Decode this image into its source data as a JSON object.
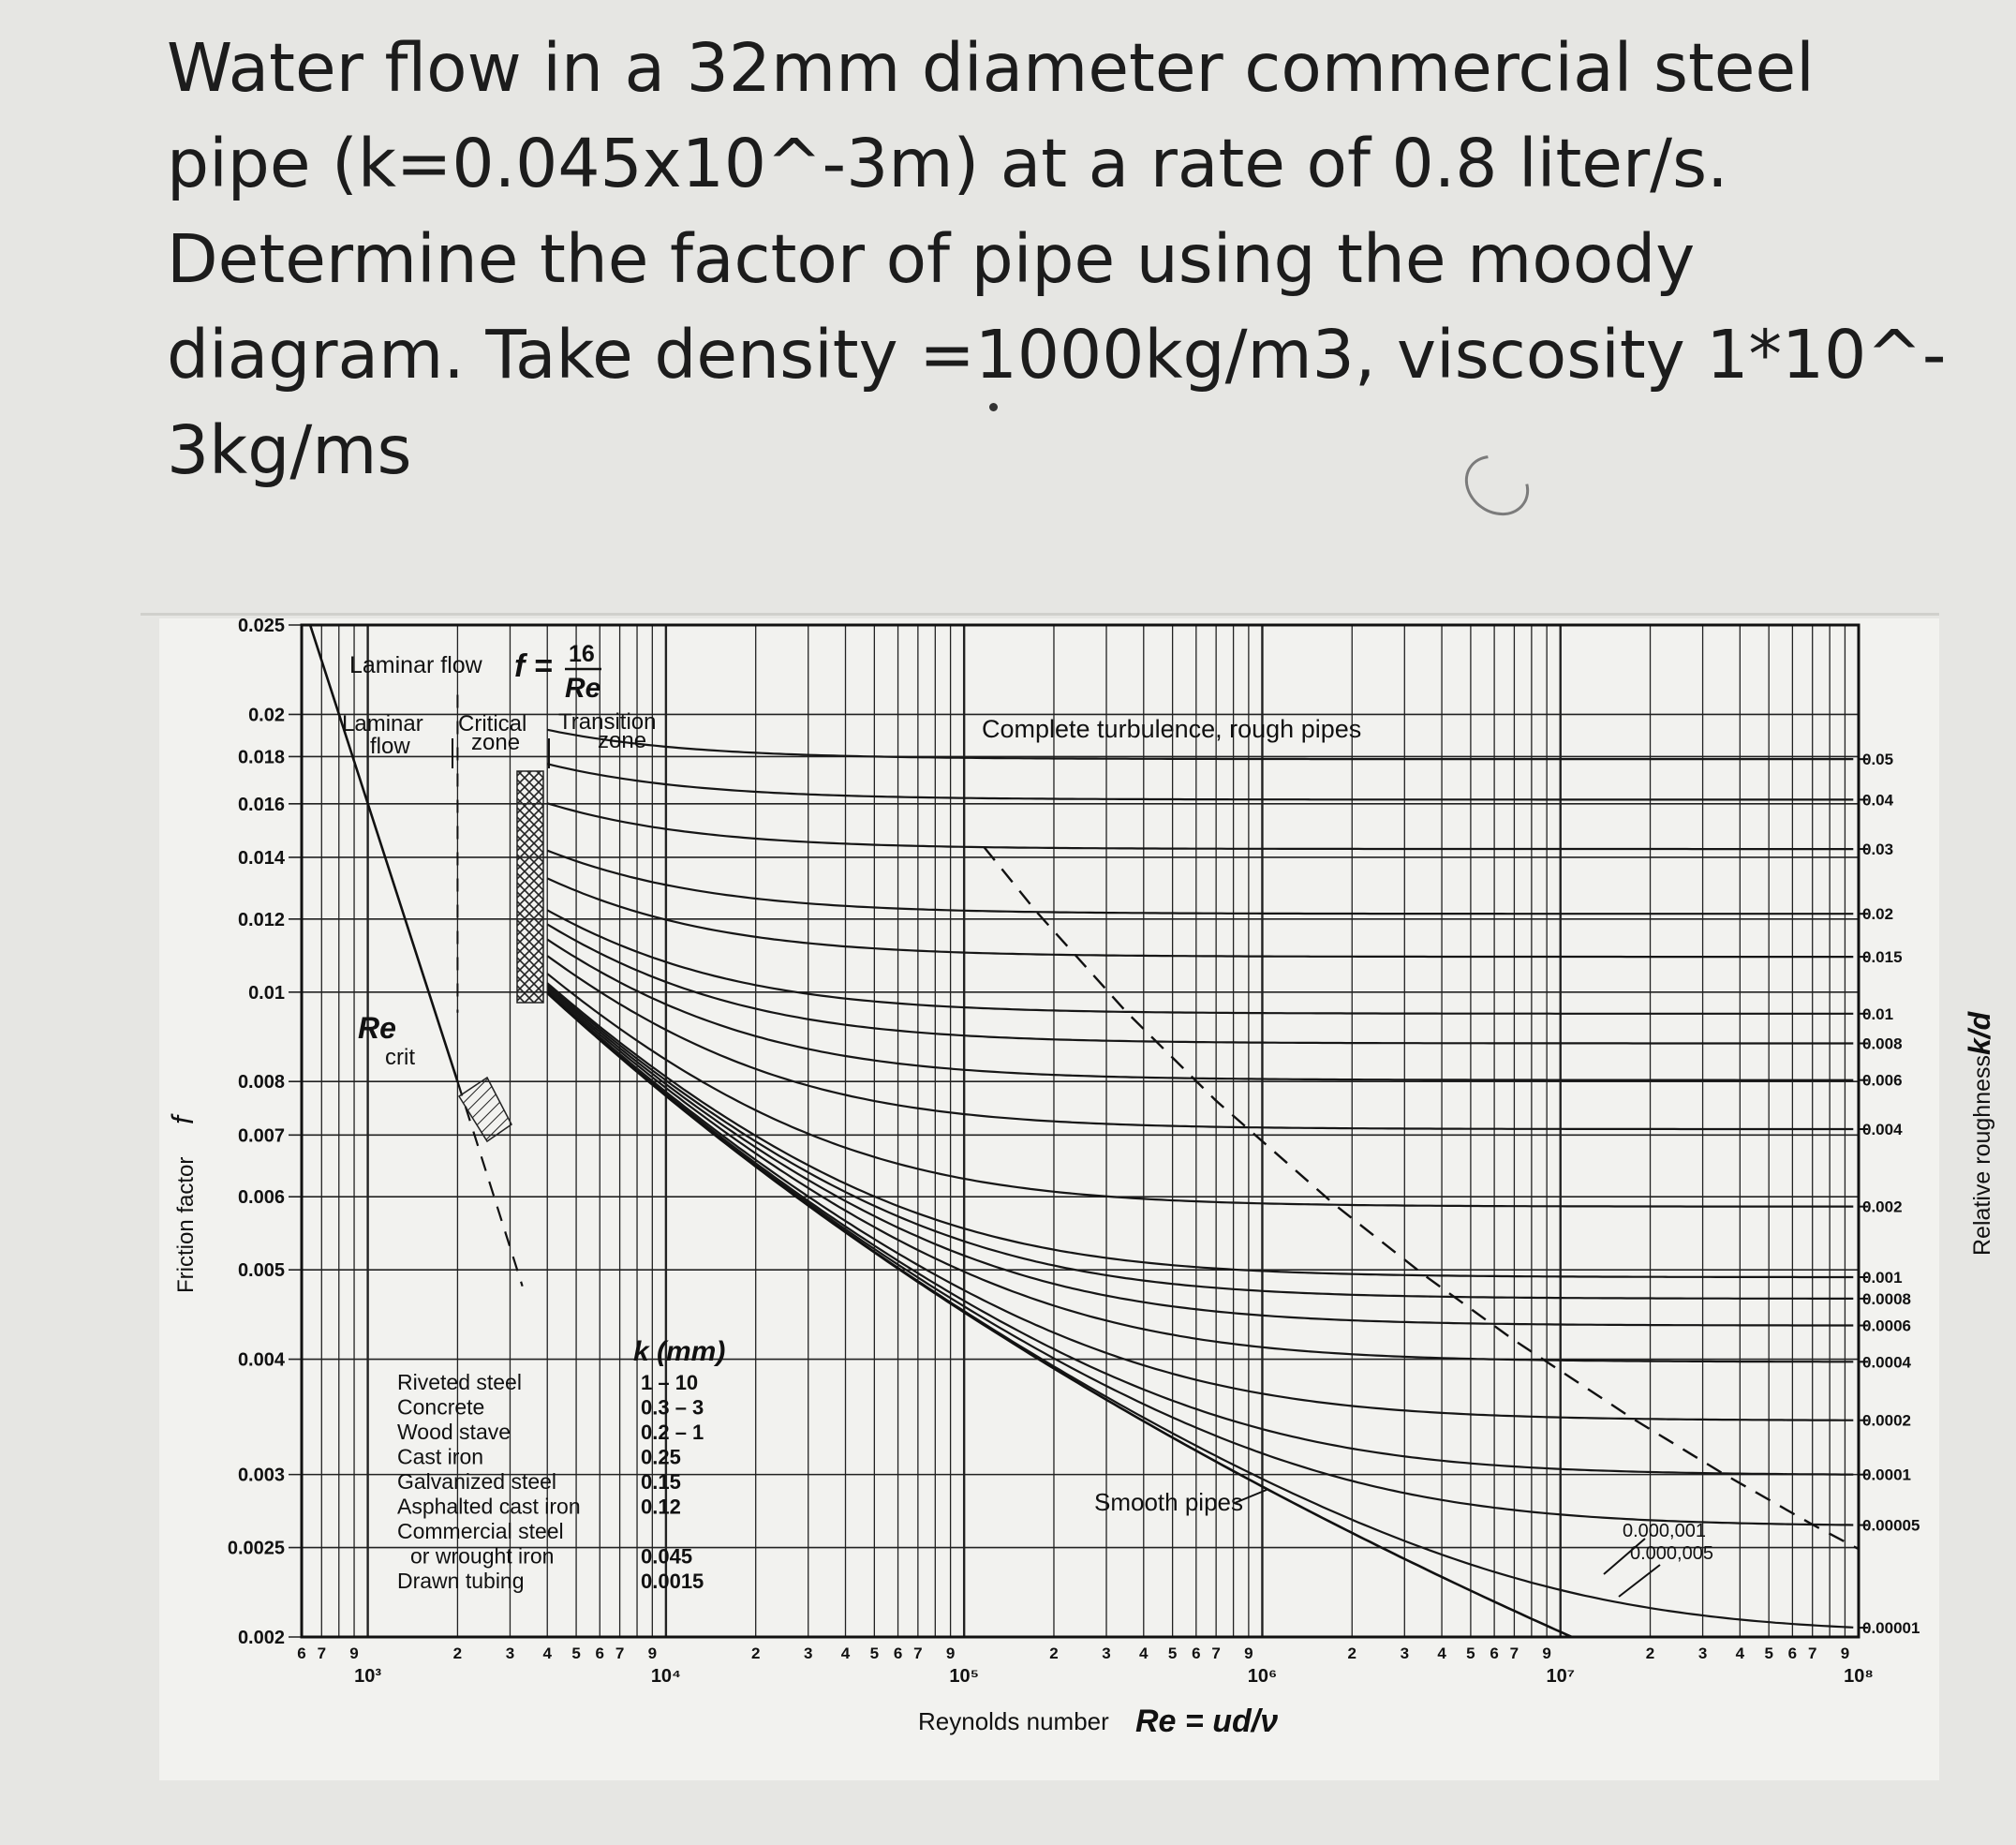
{
  "question": {
    "lines": [
      "Water flow in a 32mm diameter commercial steel",
      "pipe (k=0.045x10^-3m) at a rate of 0.8 liter/s.",
      "Determine the factor of pipe using the moody",
      "diagram. Take density =1000kg/m3, viscosity 1*10^-",
      "3kg/ms"
    ]
  },
  "chart_data": {
    "type": "line",
    "title": "",
    "xlabel": "Reynolds number",
    "xlabel_formula": "Re = ud/ν",
    "ylabel": "Friction factor",
    "ylabel_symbol": "f",
    "y2label": "Relative roughness",
    "y2label_symbol": "k/d",
    "xscale": "log",
    "yscale": "log",
    "xlim": [
      600,
      100000000
    ],
    "ylim": [
      0.002,
      0.025
    ],
    "grid": true,
    "x_major_tick_labels": [
      "10³",
      "10⁴",
      "10⁵",
      "10⁶",
      "10⁷",
      "10⁸"
    ],
    "x_minor_tick_labels": [
      "7",
      "9",
      "2",
      "3",
      "4",
      "5",
      "6",
      "7",
      "9"
    ],
    "y_ticks": [
      {
        "value": 0.025,
        "label": "0.025"
      },
      {
        "value": 0.02,
        "label": "0.02"
      },
      {
        "value": 0.018,
        "label": "0.018"
      },
      {
        "value": 0.016,
        "label": "0.016"
      },
      {
        "value": 0.014,
        "label": "0.014"
      },
      {
        "value": 0.012,
        "label": "0.012"
      },
      {
        "value": 0.01,
        "label": "0.01"
      },
      {
        "value": 0.008,
        "label": "0.008"
      },
      {
        "value": 0.007,
        "label": "0.007"
      },
      {
        "value": 0.006,
        "label": "0.006"
      },
      {
        "value": 0.005,
        "label": "0.005"
      },
      {
        "value": 0.004,
        "label": "0.004"
      },
      {
        "value": 0.003,
        "label": "0.003"
      },
      {
        "value": 0.0025,
        "label": "0.0025"
      },
      {
        "value": 0.002,
        "label": "0.002"
      }
    ],
    "relative_roughness_curves": [
      {
        "label": "0.05",
        "value": 0.05
      },
      {
        "label": "0.04",
        "value": 0.04
      },
      {
        "label": "0.03",
        "value": 0.03
      },
      {
        "label": "0.02",
        "value": 0.02
      },
      {
        "label": "0.015",
        "value": 0.015
      },
      {
        "label": "0.01",
        "value": 0.01
      },
      {
        "label": "0.008",
        "value": 0.008
      },
      {
        "label": "0.006",
        "value": 0.006
      },
      {
        "label": "0.004",
        "value": 0.004
      },
      {
        "label": "0.002",
        "value": 0.002
      },
      {
        "label": "0.001",
        "value": 0.001
      },
      {
        "label": "0.0008",
        "value": 0.0008
      },
      {
        "label": "0.0006",
        "value": 0.0006
      },
      {
        "label": "0.0004",
        "value": 0.0004
      },
      {
        "label": "0.0002",
        "value": 0.0002
      },
      {
        "label": "0.0001",
        "value": 0.0001
      },
      {
        "label": "0.00005",
        "value": 5e-05
      },
      {
        "label": "0.00001",
        "value": 1e-05
      }
    ],
    "inner_curve_labels": [
      "0.000,001",
      "0.000,005"
    ],
    "laminar_line": {
      "formula": "f = 16/Re",
      "x": [
        600,
        2000
      ],
      "y": [
        0.0267,
        0.008
      ]
    },
    "annotations": {
      "laminar_flow_formula_prefix": "Laminar flow",
      "laminar_flow_formula": "f =",
      "laminar_numerator": "16",
      "laminar_denominator": "Re",
      "laminar_zone": [
        "Laminar",
        "flow"
      ],
      "critical_zone": [
        "Critical",
        "zone"
      ],
      "transition_zone": [
        "Transition",
        "zone"
      ],
      "complete_turbulence": "Complete turbulence, rough pipes",
      "re_crit": "Re",
      "re_crit_sub": "crit",
      "smooth_pipes": "Smooth pipes"
    },
    "roughness_table": {
      "header": "k (mm)",
      "rows": [
        {
          "material": "Riveted steel",
          "k": "1 – 10"
        },
        {
          "material": "Concrete",
          "k": "0.3 – 3"
        },
        {
          "material": "Wood stave",
          "k": "0.2 – 1"
        },
        {
          "material": "Cast iron",
          "k": "0.25"
        },
        {
          "material": "Galvanized steel",
          "k": "0.15"
        },
        {
          "material": "Asphalted cast iron",
          "k": "0.12"
        },
        {
          "material": "Commercial steel",
          "k": ""
        },
        {
          "material": "or wrought iron",
          "k": "0.045"
        },
        {
          "material": "Drawn tubing",
          "k": "0.0015"
        }
      ]
    }
  }
}
